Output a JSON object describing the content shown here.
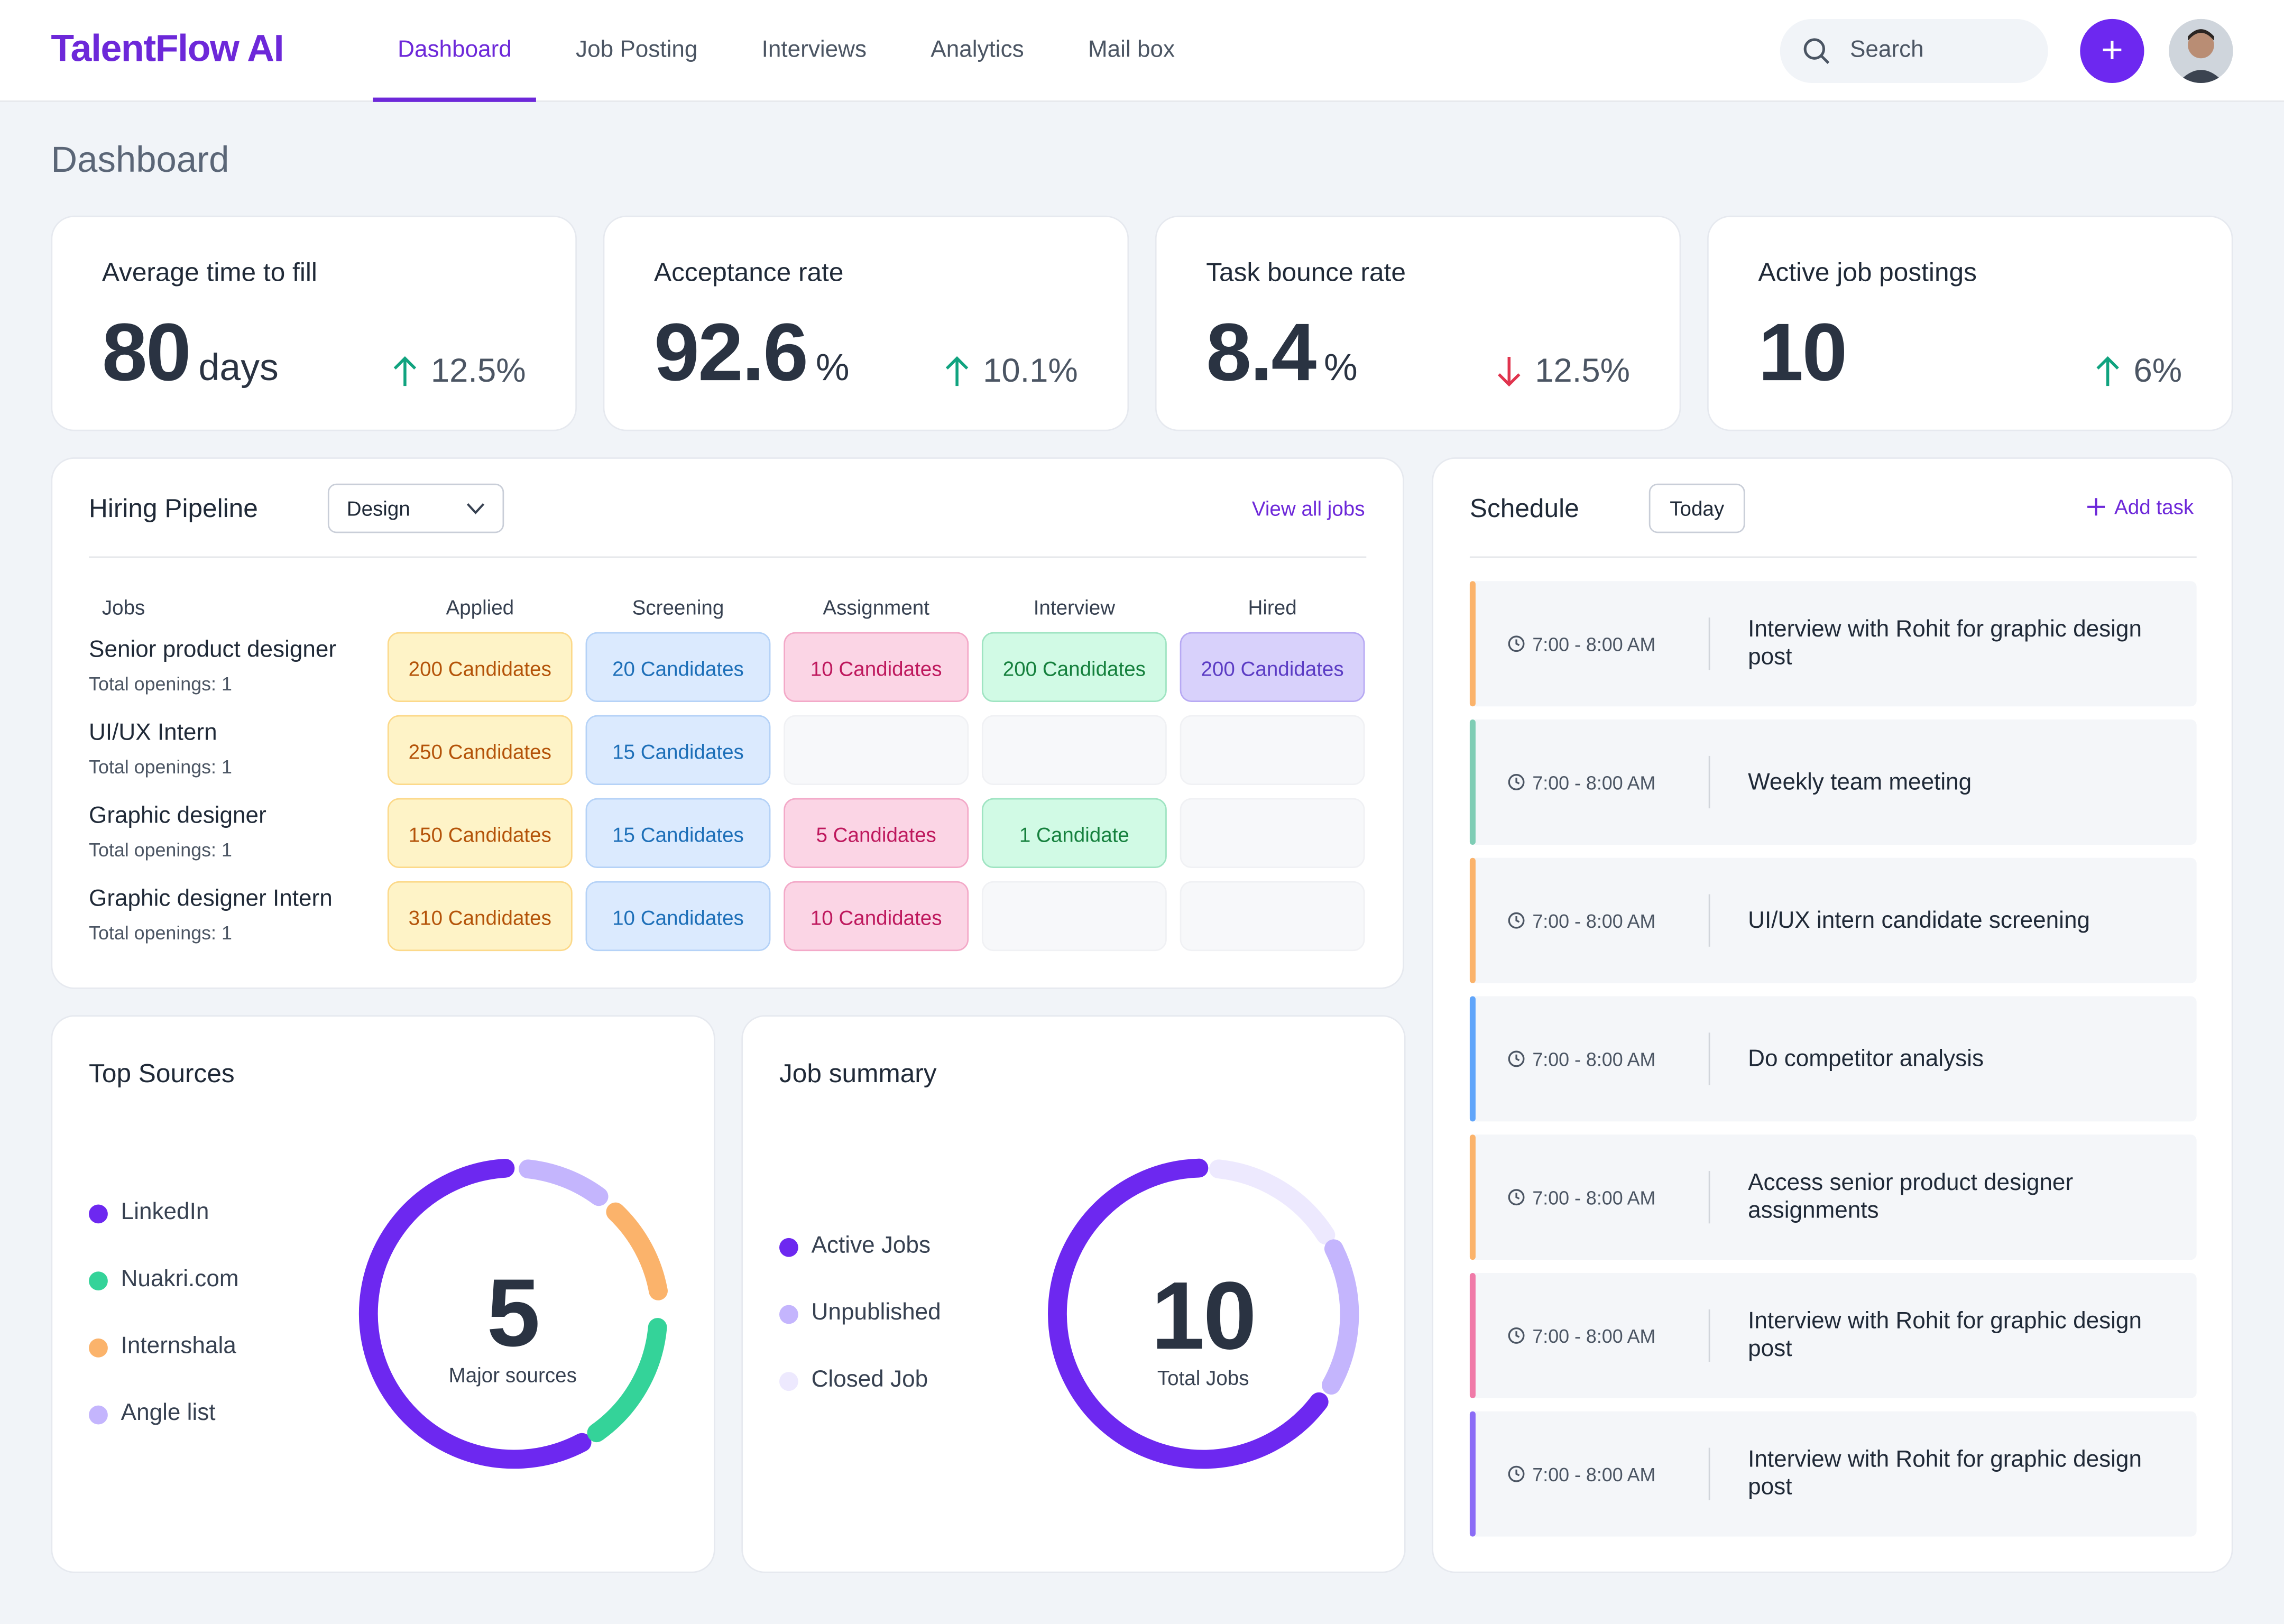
{
  "header": {
    "logo": "TalentFlow AI",
    "nav": [
      "Dashboard",
      "Job Posting",
      "Interviews",
      "Analytics",
      "Mail box"
    ],
    "search_placeholder": "Search",
    "add_label": "+"
  },
  "page_title": "Dashboard",
  "kpis": [
    {
      "label": "Average time to fill",
      "value": "80",
      "unit": "days",
      "change": "12.5%",
      "direction": "up"
    },
    {
      "label": "Acceptance rate",
      "value": "92.6",
      "unit": "%",
      "change": "10.1%",
      "direction": "up"
    },
    {
      "label": "Task bounce rate",
      "value": "8.4",
      "unit": "%",
      "change": "12.5%",
      "direction": "down"
    },
    {
      "label": "Active job postings",
      "value": "10",
      "unit": "",
      "change": "6%",
      "direction": "up"
    }
  ],
  "pipeline": {
    "title": "Hiring Pipeline",
    "filter": "Design",
    "view_all": "View all jobs",
    "columns": [
      "Jobs",
      "Applied",
      "Screening",
      "Assignment",
      "Interview",
      "Hired"
    ],
    "rows": [
      {
        "job": "Senior product designer",
        "openings": "Total openings: 1",
        "cells": [
          "200 Candidates",
          "20 Candidates",
          "10 Candidates",
          "200 Candidates",
          "200 Candidates"
        ]
      },
      {
        "job": "UI/UX Intern",
        "openings": "Total openings: 1",
        "cells": [
          "250 Candidates",
          "15 Candidates",
          "",
          "",
          ""
        ]
      },
      {
        "job": "Graphic designer",
        "openings": "Total openings: 1",
        "cells": [
          "150 Candidates",
          "15 Candidates",
          "5 Candidates",
          "1 Candidate",
          ""
        ]
      },
      {
        "job": "Graphic designer Intern",
        "openings": "Total openings: 1",
        "cells": [
          "310 Candidates",
          "10 Candidates",
          "10 Candidates",
          "",
          ""
        ]
      }
    ]
  },
  "schedule": {
    "title": "Schedule",
    "filter": "Today",
    "add_task": "Add task",
    "items": [
      {
        "time": "7:00 - 8:00 AM",
        "text": "Interview with Rohit for graphic design post",
        "color": "#fbb36b"
      },
      {
        "time": "7:00 - 8:00 AM",
        "text": "Weekly team meeting",
        "color": "#7fcdb5"
      },
      {
        "time": "7:00 - 8:00 AM",
        "text": "UI/UX intern candidate screening",
        "color": "#fbb36b"
      },
      {
        "time": "7:00 - 8:00 AM",
        "text": "Do competitor analysis",
        "color": "#60a5fa"
      },
      {
        "time": "7:00 - 8:00 AM",
        "text": "Access senior product designer assignments",
        "color": "#fbb36b"
      },
      {
        "time": "7:00 - 8:00 AM",
        "text": "Interview with Rohit for graphic design post",
        "color": "#f07aa8"
      },
      {
        "time": "7:00 - 8:00 AM",
        "text": "Interview with Rohit for graphic design post",
        "color": "#8b6cf6"
      }
    ]
  },
  "top_sources": {
    "title": "Top Sources",
    "center_value": "5",
    "center_label": "Major sources",
    "legend": [
      {
        "name": "LinkedIn",
        "color": "#6d28f0"
      },
      {
        "name": "Nuakri.com",
        "color": "#34d399"
      },
      {
        "name": "Internshala",
        "color": "#fbb36b"
      },
      {
        "name": "Angle list",
        "color": "#c4b5fd"
      }
    ]
  },
  "job_summary": {
    "title": "Job summary",
    "center_value": "10",
    "center_label": "Total Jobs",
    "legend": [
      {
        "name": "Active Jobs",
        "color": "#6d28f0"
      },
      {
        "name": "Unpublished",
        "color": "#c4b5fd"
      },
      {
        "name": "Closed Job",
        "color": "#ede9fe"
      }
    ]
  },
  "colors": {
    "accent": "#6d28d9",
    "up": "#10a37f",
    "down": "#e0344e"
  }
}
